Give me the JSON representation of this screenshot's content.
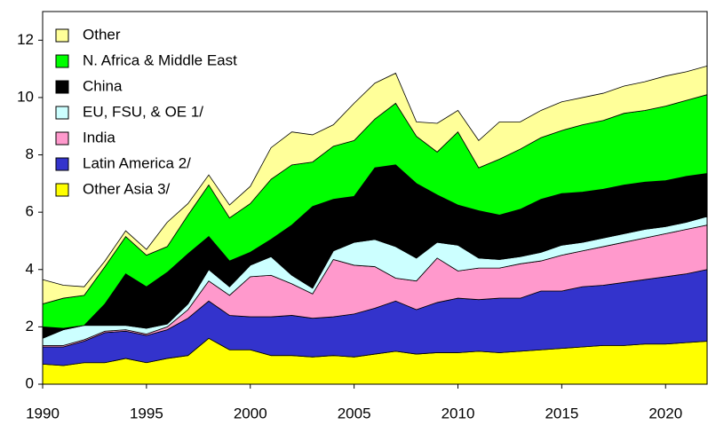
{
  "chart_data": {
    "type": "stacked_area",
    "x": [
      1990,
      1991,
      1992,
      1993,
      1994,
      1995,
      1996,
      1997,
      1998,
      1999,
      2000,
      2001,
      2002,
      2003,
      2004,
      2005,
      2006,
      2007,
      2008,
      2009,
      2010,
      2011,
      2012,
      2013,
      2014,
      2015,
      2016,
      2017,
      2018,
      2019,
      2020,
      2021,
      2022
    ],
    "series": [
      {
        "name": "Other Asia 3/",
        "color": "#ffff00",
        "values": [
          0.7,
          0.65,
          0.75,
          0.75,
          0.9,
          0.75,
          0.9,
          1.0,
          1.6,
          1.2,
          1.2,
          1.0,
          1.0,
          0.95,
          1.0,
          0.95,
          1.05,
          1.15,
          1.05,
          1.1,
          1.1,
          1.15,
          1.1,
          1.15,
          1.2,
          1.25,
          1.3,
          1.35,
          1.35,
          1.4,
          1.4,
          1.45,
          1.5
        ]
      },
      {
        "name": "Latin America 2/",
        "color": "#3333cc",
        "values": [
          0.6,
          0.65,
          0.75,
          1.05,
          0.95,
          0.95,
          1.0,
          1.3,
          1.3,
          1.2,
          1.15,
          1.35,
          1.4,
          1.35,
          1.35,
          1.5,
          1.6,
          1.75,
          1.55,
          1.75,
          1.9,
          1.8,
          1.9,
          1.85,
          2.05,
          2.0,
          2.1,
          2.1,
          2.2,
          2.25,
          2.35,
          2.4,
          2.5
        ]
      },
      {
        "name": "India",
        "color": "#ff99cc",
        "values": [
          0.05,
          0.05,
          0.05,
          0.05,
          0.05,
          0.05,
          0.1,
          0.3,
          0.7,
          0.7,
          1.4,
          1.45,
          1.1,
          0.85,
          2.0,
          1.7,
          1.45,
          0.8,
          1.0,
          1.55,
          0.95,
          1.1,
          1.05,
          1.2,
          1.05,
          1.25,
          1.25,
          1.35,
          1.4,
          1.45,
          1.5,
          1.55,
          1.55
        ]
      },
      {
        "name": "EU, FSU, & OE 1/",
        "color": "#ccffff",
        "values": [
          0.25,
          0.55,
          0.5,
          0.2,
          0.15,
          0.2,
          0.1,
          0.2,
          0.4,
          0.3,
          0.4,
          0.65,
          0.3,
          0.2,
          0.3,
          0.8,
          0.95,
          1.1,
          0.8,
          0.55,
          0.9,
          0.35,
          0.3,
          0.25,
          0.3,
          0.35,
          0.3,
          0.3,
          0.3,
          0.3,
          0.25,
          0.25,
          0.3
        ]
      },
      {
        "name": "China",
        "color": "#000000",
        "values": [
          0.4,
          0.05,
          0.0,
          0.75,
          1.8,
          1.45,
          1.8,
          1.75,
          1.15,
          0.9,
          0.45,
          0.6,
          1.75,
          2.85,
          1.8,
          1.6,
          2.5,
          2.85,
          2.6,
          1.65,
          1.4,
          1.65,
          1.55,
          1.65,
          1.85,
          1.8,
          1.75,
          1.7,
          1.7,
          1.65,
          1.6,
          1.6,
          1.5
        ]
      },
      {
        "name": "N. Africa & Middle East",
        "color": "#00ff00",
        "values": [
          0.8,
          1.05,
          1.05,
          1.3,
          1.3,
          1.1,
          0.9,
          1.35,
          1.8,
          1.5,
          1.7,
          2.1,
          2.1,
          1.55,
          1.85,
          1.95,
          1.7,
          2.15,
          1.65,
          1.5,
          2.55,
          1.5,
          1.95,
          2.1,
          2.15,
          2.2,
          2.35,
          2.4,
          2.5,
          2.5,
          2.6,
          2.65,
          2.75
        ]
      },
      {
        "name": "Other",
        "color": "#ffff99",
        "values": [
          0.85,
          0.45,
          0.3,
          0.2,
          0.2,
          0.2,
          0.85,
          0.4,
          0.35,
          0.45,
          0.6,
          1.1,
          1.15,
          0.95,
          0.75,
          1.3,
          1.25,
          1.05,
          0.5,
          1.0,
          0.75,
          0.95,
          1.3,
          0.95,
          0.95,
          1.0,
          0.95,
          0.95,
          0.95,
          1.0,
          1.05,
          1.0,
          1.0
        ]
      }
    ],
    "xlim": [
      1990,
      2022
    ],
    "xticks": [
      1990,
      1995,
      2000,
      2005,
      2010,
      2015,
      2020
    ],
    "ylim": [
      0,
      13
    ],
    "yticks": [
      0,
      2,
      4,
      6,
      8,
      10,
      12
    ],
    "legend": "upper left"
  }
}
